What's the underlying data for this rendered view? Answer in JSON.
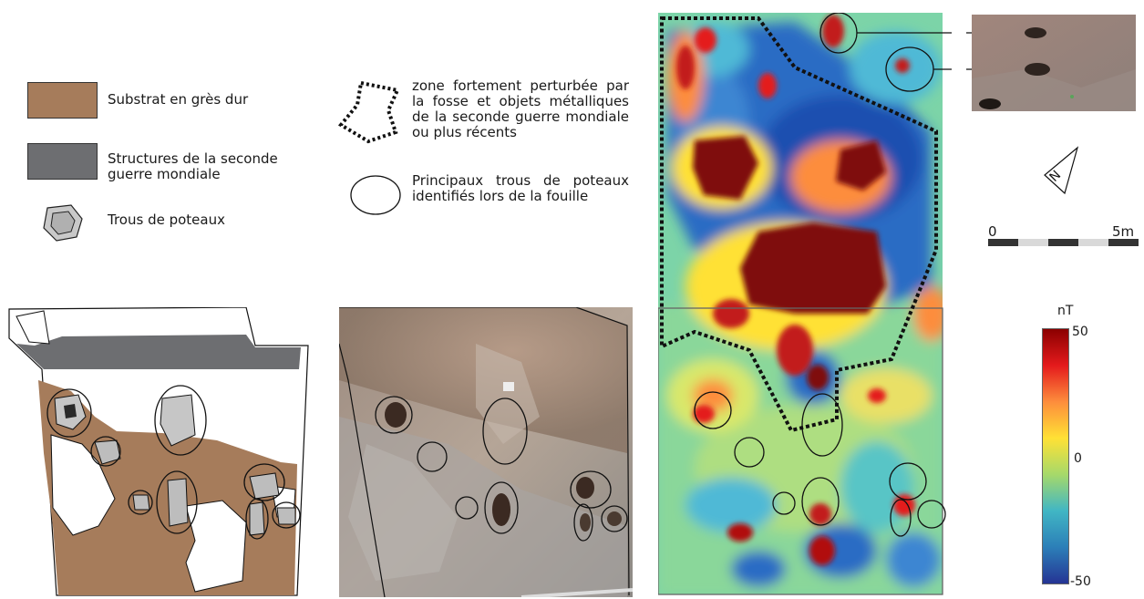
{
  "legend": {
    "substrate": {
      "label": "Substrat en grès dur",
      "color": "#a67c5b"
    },
    "ww2": {
      "label": "Structures de la seconde guerre mondiale",
      "color": "#6d6e71"
    },
    "postholes": {
      "label": "Trous de poteaux"
    },
    "zone": {
      "label": "zone fortement perturbée par la fosse et objets métalliques de la seconde guerre mondiale ou plus récents"
    },
    "main_postholes": {
      "label": "Principaux trous de poteaux identifiés lors de la fouille"
    }
  },
  "scale_bar": {
    "start": "0",
    "end": "5m"
  },
  "north_arrow": {
    "letter": "N"
  },
  "colorbar": {
    "unit": "nT",
    "max": "50",
    "mid": "0",
    "min": "-50",
    "colors": [
      "#8b0000",
      "#e41a1c",
      "#fd8d3c",
      "#ffe135",
      "#a6d96a",
      "#41b6c4",
      "#2c7fb8",
      "#253494"
    ]
  },
  "magnetic_map": {
    "low_color": "#2b6cc4",
    "high_color": "#7f0a0a",
    "mid_color": "#7cd4a8"
  }
}
